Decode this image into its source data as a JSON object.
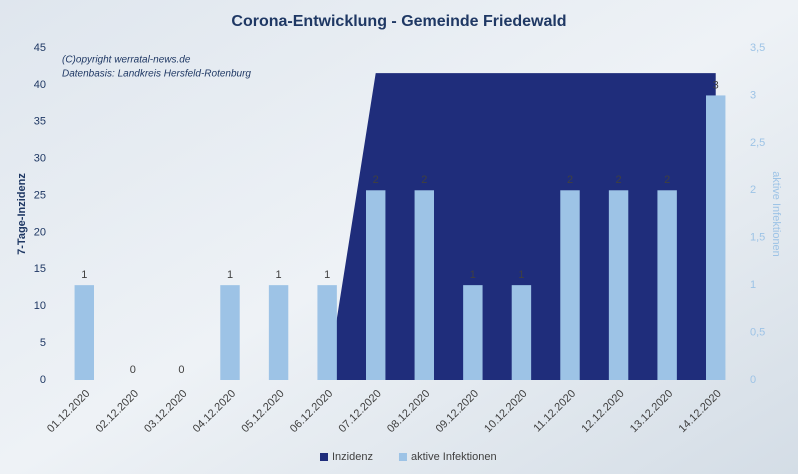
{
  "chart_data": {
    "type": "combo",
    "title": "Corona-Entwicklung - Gemeinde Friedewald",
    "annotations": [
      "(C)opyright werratal-news.de",
      "Datenbasis: Landkreis Hersfeld-Rotenburg"
    ],
    "y_label": "7-Tage-Inzidenz",
    "y2_label": "aktive Infektionen",
    "categories": [
      "01.12.2020",
      "02.12.2020",
      "03.12.2020",
      "04.12.2020",
      "05.12.2020",
      "06.12.2020",
      "07.12.2020",
      "08.12.2020",
      "09.12.2020",
      "10.12.2020",
      "11.12.2020",
      "12.12.2020",
      "13.12.2020",
      "14.12.2020"
    ],
    "series": [
      {
        "name": "Inzidenz",
        "type": "area",
        "color": "#1f2d7b",
        "axis": "y",
        "values": [
          0,
          0,
          0,
          0,
          0,
          0,
          41.6,
          41.6,
          41.6,
          41.6,
          41.6,
          41.6,
          41.6,
          41.6
        ]
      },
      {
        "name": "aktive Infektionen",
        "type": "bar",
        "color": "#9dc3e6",
        "axis": "y2",
        "values": [
          1,
          0,
          0,
          1,
          1,
          1,
          2,
          2,
          1,
          1,
          2,
          2,
          2,
          3
        ]
      }
    ],
    "ylim": [
      0,
      45
    ],
    "yticks": [
      0,
      5,
      10,
      15,
      20,
      25,
      30,
      35,
      40,
      45
    ],
    "y2lim": [
      0,
      3.5
    ],
    "y2ticks": [
      0,
      {
        "value": 0.5,
        "label": "0,5"
      },
      1,
      {
        "value": 1.5,
        "label": "1,5"
      },
      2,
      {
        "value": 2.5,
        "label": "2,5"
      },
      3,
      {
        "value": 3.5,
        "label": "3,5"
      }
    ],
    "legend": "bottom",
    "grid": false
  }
}
